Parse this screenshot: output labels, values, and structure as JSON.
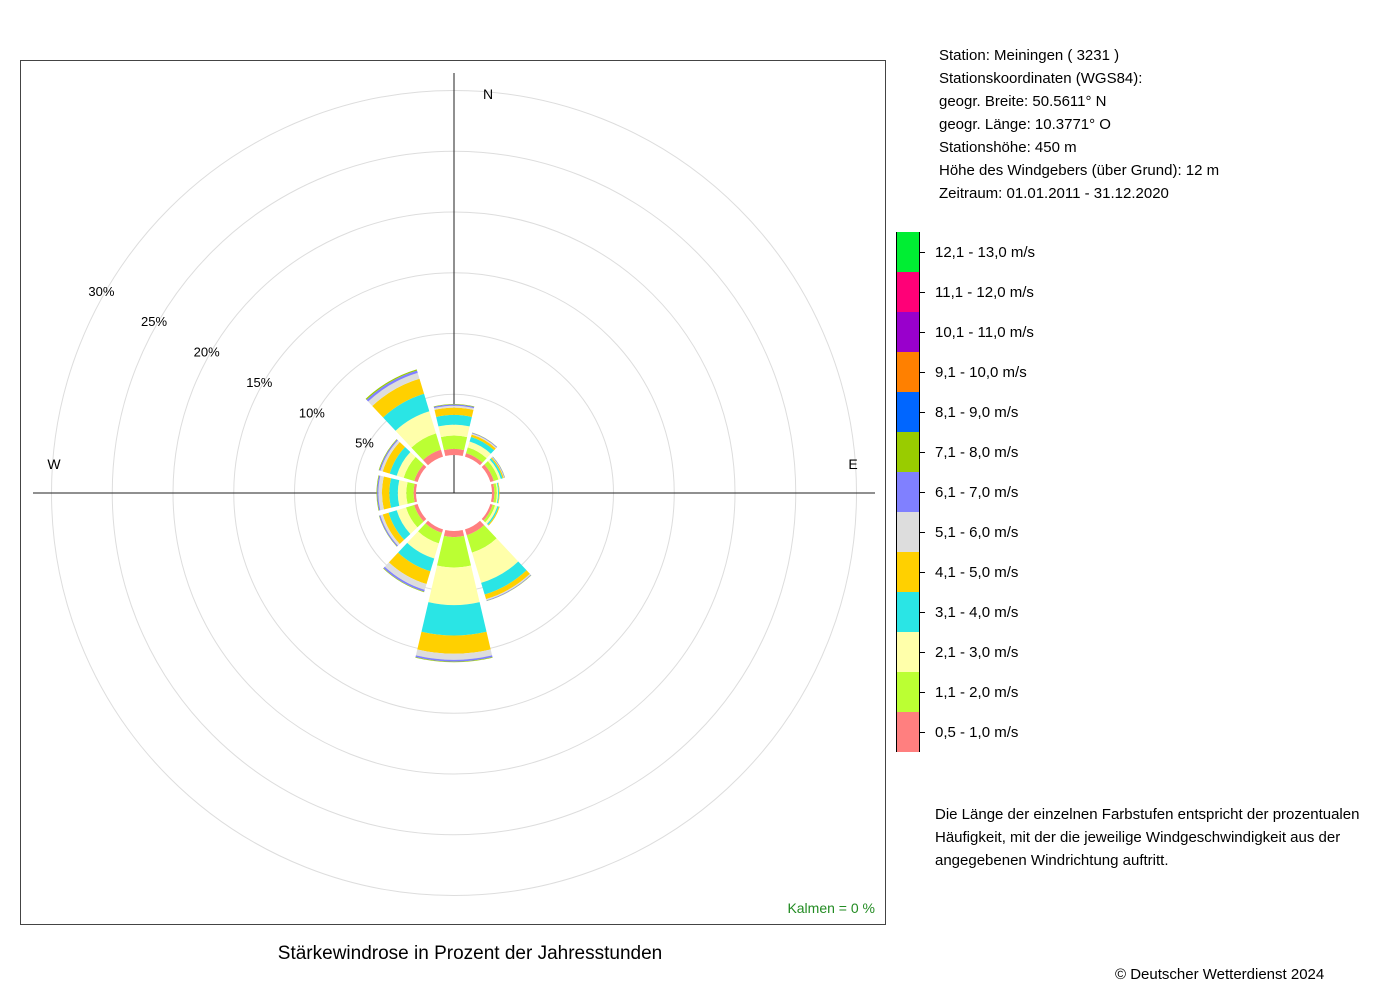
{
  "chart_data": {
    "type": "windrose",
    "title": "Stärkewindrose in Prozent der Jahresstunden",
    "radial_unit": "%",
    "radial_ticks": [
      "5%",
      "10%",
      "15%",
      "20%",
      "25%",
      "30%"
    ],
    "radial_tick_values": [
      5,
      10,
      15,
      20,
      25,
      30
    ],
    "directions_labels": [
      "N",
      "E",
      "W"
    ],
    "calm_text": "Kalmen  =  0 %",
    "sector_angles_deg": [
      0,
      30,
      60,
      90,
      120,
      150,
      180,
      210,
      240,
      270,
      300,
      330
    ],
    "speed_classes": [
      {
        "label": "0,5 - 1,0 m/s",
        "color": "#FF7F7F"
      },
      {
        "label": "1,1 - 2,0 m/s",
        "color": "#BBFF33"
      },
      {
        "label": "2,1 - 3,0 m/s",
        "color": "#FFFFAA"
      },
      {
        "label": "3,1 - 4,0 m/s",
        "color": "#2AE5E5"
      },
      {
        "label": "4,1 - 5,0 m/s",
        "color": "#FFD000"
      },
      {
        "label": "5,1 - 6,0 m/s",
        "color": "#DDDDDD"
      },
      {
        "label": "6,1 - 7,0 m/s",
        "color": "#8080FF"
      },
      {
        "label": "7,1 - 8,0 m/s",
        "color": "#99CC00"
      },
      {
        "label": "8,1 - 9,0 m/s",
        "color": "#0066FF"
      },
      {
        "label": "9,1 - 10,0 m/s",
        "color": "#FF8000"
      },
      {
        "label": "10,1 - 11,0 m/s",
        "color": "#9900CC"
      },
      {
        "label": "11,1 - 12,0 m/s",
        "color": "#FF0077"
      },
      {
        "label": "12,1 - 13,0 m/s",
        "color": "#00EE33"
      }
    ],
    "sectors": [
      {
        "direction": 0,
        "values": [
          0.5,
          1.1,
          0.9,
          0.8,
          0.6,
          0.15,
          0.1,
          0.05
        ]
      },
      {
        "direction": 30,
        "values": [
          0.3,
          0.5,
          0.5,
          0.4,
          0.2,
          0.1,
          0.05,
          0.02
        ]
      },
      {
        "direction": 60,
        "values": [
          0.3,
          0.4,
          0.2,
          0.15,
          0.1,
          0.05,
          0.04,
          0.02
        ]
      },
      {
        "direction": 90,
        "values": [
          0.2,
          0.2,
          0.1,
          0.08,
          0.05,
          0.0,
          0.0,
          0.0
        ]
      },
      {
        "direction": 120,
        "values": [
          0.2,
          0.2,
          0.2,
          0.12,
          0.08,
          0.0,
          0.0,
          0.0
        ]
      },
      {
        "direction": 150,
        "values": [
          0.5,
          1.5,
          2.6,
          1.0,
          0.4,
          0.1,
          0.05,
          0.02
        ]
      },
      {
        "direction": 180,
        "values": [
          0.5,
          2.5,
          3.1,
          2.5,
          1.5,
          0.5,
          0.15,
          0.05
        ]
      },
      {
        "direction": 210,
        "values": [
          0.3,
          0.9,
          1.3,
          1.1,
          1.1,
          0.5,
          0.15,
          0.05
        ]
      },
      {
        "direction": 240,
        "values": [
          0.3,
          0.7,
          0.8,
          0.7,
          0.5,
          0.2,
          0.1,
          0.03
        ]
      },
      {
        "direction": 270,
        "values": [
          0.2,
          0.6,
          0.7,
          0.7,
          0.6,
          0.3,
          0.1,
          0.05
        ]
      },
      {
        "direction": 300,
        "values": [
          0.3,
          0.9,
          0.6,
          0.6,
          0.6,
          0.2,
          0.1,
          0.05
        ]
      },
      {
        "direction": 330,
        "values": [
          0.6,
          1.4,
          1.9,
          1.5,
          1.3,
          0.5,
          0.2,
          0.1
        ]
      }
    ]
  },
  "info": {
    "station": "Station:  Meiningen  ( 3231 )",
    "coords_title": "Stationskoordinaten (WGS84):",
    "lat": "geogr. Breite: 50.5611° N",
    "lon": "geogr. Länge: 10.3771° O",
    "elevation": "Stationshöhe: 450 m",
    "sensor_height": "Höhe des Windgebers (über Grund): 12 m",
    "period": "Zeitraum: 01.01.2011 - 31.12.2020"
  },
  "note": "Die Länge der einzelnen Farbstufen entspricht der prozentualen Häufigkeit, mit der die jeweilige Windgeschwindigkeit aus der angegebenen Windrichtung auftritt.",
  "copyright": "© Deutscher Wetterdienst  2024"
}
